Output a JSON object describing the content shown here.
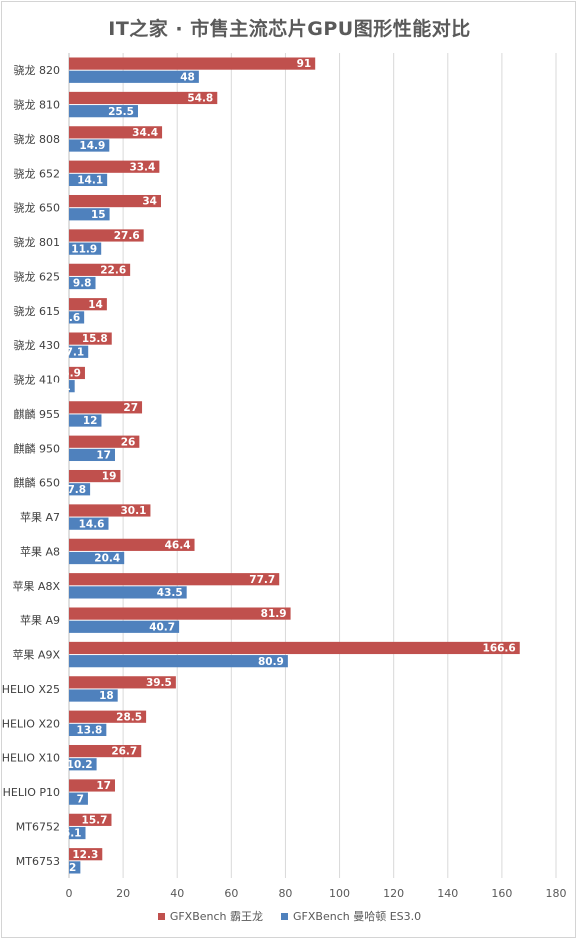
{
  "chart_data": {
    "type": "bar",
    "orientation": "horizontal",
    "title": "IT之家 · 市售主流芯片GPU图形性能对比",
    "categories": [
      "骁龙 820",
      "骁龙 810",
      "骁龙 808",
      "骁龙 652",
      "骁龙 650",
      "骁龙 801",
      "骁龙 625",
      "骁龙 615",
      "骁龙 430",
      "骁龙 410",
      "麒麟 955",
      "麒麟 950",
      "麒麟 650",
      "苹果 A7",
      "苹果 A8",
      "苹果 A8X",
      "苹果 A9",
      "苹果 A9X",
      "HELIO X25",
      "HELIO X20",
      "HELIO X10",
      "HELIO P10",
      "MT6752",
      "MT6753"
    ],
    "series": [
      {
        "name": "GFXBench 霸王龙",
        "color": "#c0504d",
        "values": [
          91,
          54.8,
          34.4,
          33.4,
          34,
          27.6,
          22.6,
          14,
          15.8,
          5.9,
          27,
          26,
          19,
          30.1,
          46.4,
          77.7,
          81.9,
          166.6,
          39.5,
          28.5,
          26.7,
          17,
          15.7,
          12.3
        ]
      },
      {
        "name": "GFXBench 曼哈顿 ES3.0",
        "color": "#4f81bd",
        "values": [
          48,
          25.5,
          14.9,
          14.1,
          15,
          11.9,
          9.8,
          5.6,
          7.1,
          2.1,
          12,
          17,
          7.8,
          14.6,
          20.4,
          43.5,
          40.7,
          80.9,
          18,
          13.8,
          10.2,
          7,
          6.1,
          4.2
        ]
      }
    ],
    "xlim": [
      0,
      180
    ],
    "xticks": [
      0,
      20,
      40,
      60,
      80,
      100,
      120,
      140,
      160,
      180
    ],
    "grid": true,
    "legend_position": "bottom"
  }
}
